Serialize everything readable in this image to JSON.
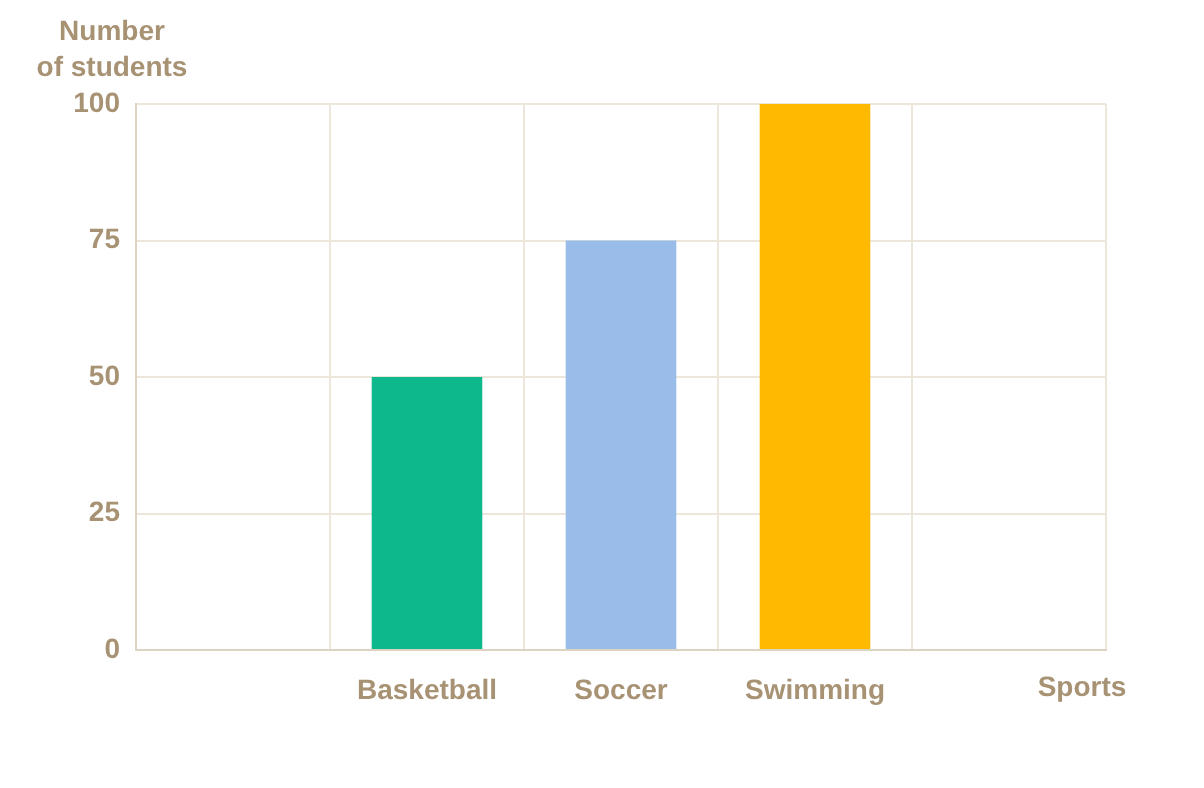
{
  "chart_data": {
    "type": "bar",
    "xlabel": "Sports",
    "ylabel": "Number of students",
    "categories": [
      null,
      "Basketball",
      "Soccer",
      "Swimming",
      null
    ],
    "values": [
      null,
      50,
      75,
      100,
      null
    ],
    "colors": [
      "#0cb88c",
      "#0cb88c",
      "#99bde8",
      "#ffb900",
      "#ffb900"
    ],
    "ylim": [
      0,
      100
    ],
    "yticks": [
      0,
      25,
      50,
      75,
      100
    ],
    "grid": true,
    "legend": false
  }
}
